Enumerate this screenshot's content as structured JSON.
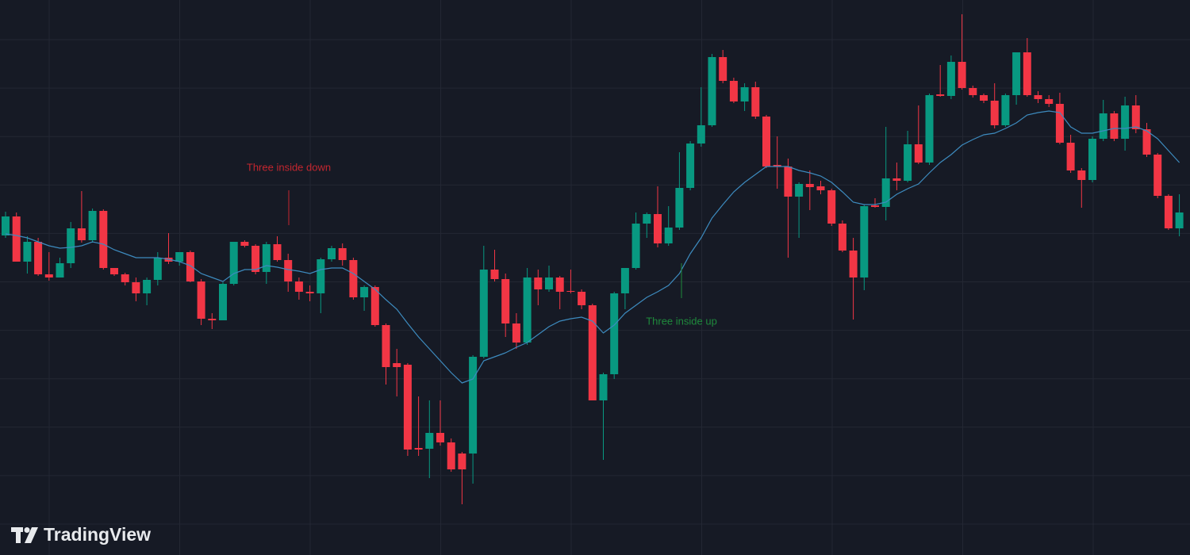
{
  "chart_data": {
    "type": "candlestick",
    "ylim": [
      0,
      700
    ],
    "grid": true,
    "up_color": "#089981",
    "down_color": "#f23645",
    "open": [
      403,
      427,
      370,
      395,
      354,
      350,
      368,
      412,
      397,
      434,
      362,
      354,
      344,
      330,
      347,
      375,
      370,
      382,
      345,
      298,
      296,
      342,
      395,
      390,
      357,
      392,
      372,
      345,
      332,
      330,
      373,
      387,
      372,
      325,
      338,
      290,
      242,
      240,
      135,
      134,
      154,
      142,
      128,
      128,
      250,
      360,
      348,
      292,
      268,
      350,
      335,
      350,
      333,
      332,
      315,
      195,
      228,
      330,
      362,
      418,
      430,
      393,
      413,
      463,
      519,
      542,
      628,
      598,
      572,
      590,
      553,
      492,
      490,
      452,
      468,
      465,
      460,
      418,
      384,
      350,
      441,
      439,
      475,
      472,
      518,
      495,
      581,
      579,
      622,
      589,
      580,
      573,
      542,
      580,
      634,
      580,
      575,
      569,
      520,
      485,
      473,
      525,
      557,
      525,
      567,
      537,
      505,
      453,
      412
    ],
    "high": [
      433,
      432,
      402,
      400,
      382,
      375,
      420,
      459,
      437,
      436,
      362,
      356,
      350,
      350,
      382,
      406,
      382,
      384,
      348,
      305,
      344,
      395,
      397,
      392,
      395,
      402,
      380,
      350,
      340,
      375,
      390,
      393,
      375,
      340,
      340,
      292,
      260,
      242,
      200,
      195,
      195,
      147,
      130,
      252,
      390,
      385,
      355,
      305,
      362,
      360,
      365,
      352,
      360,
      335,
      317,
      230,
      332,
      362,
      432,
      432,
      465,
      440,
      508,
      522,
      590,
      632,
      637,
      602,
      595,
      597,
      555,
      528,
      500,
      470,
      485,
      472,
      462,
      422,
      400,
      442,
      450,
      540,
      495,
      535,
      567,
      582,
      618,
      630,
      682,
      592,
      582,
      595,
      582,
      634,
      652,
      585,
      580,
      583,
      530,
      488,
      528,
      574,
      560,
      578,
      580,
      545,
      507,
      455,
      455
    ],
    "low": [
      400,
      370,
      355,
      352,
      346,
      350,
      362,
      394,
      394,
      360,
      352,
      340,
      320,
      315,
      340,
      367,
      365,
      344,
      290,
      285,
      296,
      340,
      388,
      354,
      342,
      370,
      332,
      322,
      320,
      305,
      370,
      365,
      322,
      308,
      288,
      215,
      200,
      125,
      125,
      97,
      138,
      105,
      64,
      90,
      248,
      345,
      275,
      260,
      265,
      315,
      332,
      310,
      330,
      310,
      195,
      120,
      222,
      310,
      360,
      400,
      388,
      390,
      410,
      460,
      515,
      540,
      595,
      570,
      560,
      550,
      488,
      462,
      375,
      400,
      435,
      455,
      415,
      382,
      297,
      334,
      438,
      422,
      460,
      470,
      493,
      492,
      578,
      575,
      587,
      577,
      570,
      538,
      540,
      568,
      578,
      570,
      565,
      518,
      482,
      438,
      470,
      522,
      522,
      510,
      532,
      502,
      450,
      410,
      402
    ],
    "close": [
      427,
      370,
      395,
      354,
      350,
      368,
      412,
      397,
      434,
      362,
      354,
      344,
      330,
      347,
      375,
      370,
      382,
      345,
      298,
      296,
      342,
      395,
      390,
      357,
      392,
      372,
      345,
      332,
      330,
      373,
      387,
      372,
      325,
      338,
      290,
      237,
      237,
      133,
      133,
      154,
      142,
      108,
      108,
      250,
      360,
      348,
      292,
      268,
      350,
      335,
      350,
      332,
      332,
      315,
      195,
      228,
      330,
      362,
      418,
      430,
      393,
      413,
      463,
      519,
      542,
      628,
      598,
      572,
      590,
      553,
      490,
      490,
      452,
      468,
      464,
      460,
      418,
      384,
      350,
      440,
      439,
      475,
      472,
      518,
      495,
      580,
      579,
      622,
      589,
      580,
      573,
      542,
      580,
      634,
      580,
      575,
      569,
      520,
      485,
      473,
      525,
      557,
      525,
      567,
      537,
      505,
      453,
      412,
      432
    ],
    "ma": {
      "color": "#3d8bbf",
      "values": [
        405,
        403,
        400,
        395,
        390,
        387,
        388,
        390,
        395,
        392,
        385,
        380,
        375,
        375,
        375,
        373,
        370,
        365,
        355,
        350,
        345,
        355,
        360,
        360,
        365,
        363,
        360,
        358,
        355,
        360,
        362,
        362,
        355,
        345,
        335,
        322,
        310,
        292,
        275,
        260,
        245,
        230,
        217,
        222,
        245,
        250,
        255,
        262,
        268,
        278,
        288,
        295,
        298,
        300,
        295,
        280,
        290,
        305,
        315,
        325,
        332,
        340,
        355,
        380,
        400,
        425,
        442,
        458,
        470,
        480,
        490,
        490,
        490,
        485,
        482,
        478,
        470,
        458,
        445,
        442,
        442,
        445,
        455,
        462,
        468,
        482,
        495,
        505,
        517,
        524,
        530,
        532,
        538,
        545,
        555,
        558,
        560,
        558,
        540,
        532,
        532,
        535,
        538,
        538,
        540,
        535,
        525,
        510,
        495
      ]
    },
    "annotations": [
      {
        "text": "Three inside down",
        "color": "#c4262f"
      },
      {
        "text": "Three inside up",
        "color": "#1f8a3c"
      }
    ]
  },
  "watermark": "TradingView"
}
